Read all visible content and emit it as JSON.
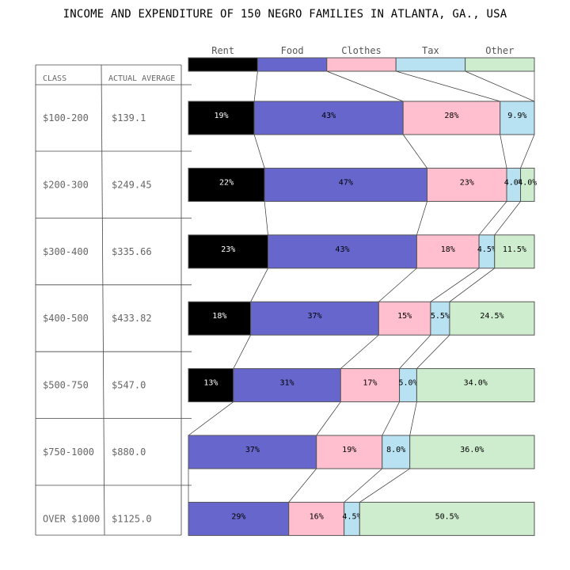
{
  "title": "INCOME AND EXPENDITURE OF 150 NEGRO FAMILIES IN ATLANTA, GA., USA",
  "colors": {
    "Rent": "#000000",
    "Food": "#6666cc",
    "Clothes": "#ffbfcf",
    "Tax": "#b8e2f2",
    "Other": "#ceedce"
  },
  "table": {
    "header_class": "CLASS",
    "header_average": "ACTUAL AVERAGE"
  },
  "chart_data": {
    "type": "bar",
    "stacked": true,
    "orientation": "horizontal",
    "categories": [
      "Rent",
      "Food",
      "Clothes",
      "Tax",
      "Other"
    ],
    "rows": [
      {
        "class": "$100-200",
        "average": "$139.1",
        "values": [
          19,
          43,
          28,
          9.9,
          0
        ],
        "labels": [
          "19%",
          "43%",
          "28%",
          "9.9%",
          ""
        ]
      },
      {
        "class": "$200-300",
        "average": "$249.45",
        "values": [
          22,
          47,
          23,
          4.0,
          4.0
        ],
        "labels": [
          "22%",
          "47%",
          "23%",
          "4.0%",
          "4.0%"
        ]
      },
      {
        "class": "$300-400",
        "average": "$335.66",
        "values": [
          23,
          43,
          18,
          4.5,
          11.5
        ],
        "labels": [
          "23%",
          "43%",
          "18%",
          "4.5%",
          "11.5%"
        ]
      },
      {
        "class": "$400-500",
        "average": "$433.82",
        "values": [
          18,
          37,
          15,
          5.5,
          24.5
        ],
        "labels": [
          "18%",
          "37%",
          "15%",
          "5.5%",
          "24.5%"
        ]
      },
      {
        "class": "$500-750",
        "average": "$547.0",
        "values": [
          13,
          31,
          17,
          5.0,
          34.0
        ],
        "labels": [
          "13%",
          "31%",
          "17%",
          "5.0%",
          "34.0%"
        ]
      },
      {
        "class": "$750-1000",
        "average": "$880.0",
        "values": [
          0,
          37,
          19,
          8.0,
          36.0
        ],
        "labels": [
          "",
          "37%",
          "19%",
          "8.0%",
          "36.0%"
        ]
      },
      {
        "class": "OVER $1000",
        "average": "$1125.0",
        "values": [
          0,
          29,
          16,
          4.5,
          50.5
        ],
        "labels": [
          "",
          "29%",
          "16%",
          "4.5%",
          "50.5%"
        ]
      }
    ]
  }
}
